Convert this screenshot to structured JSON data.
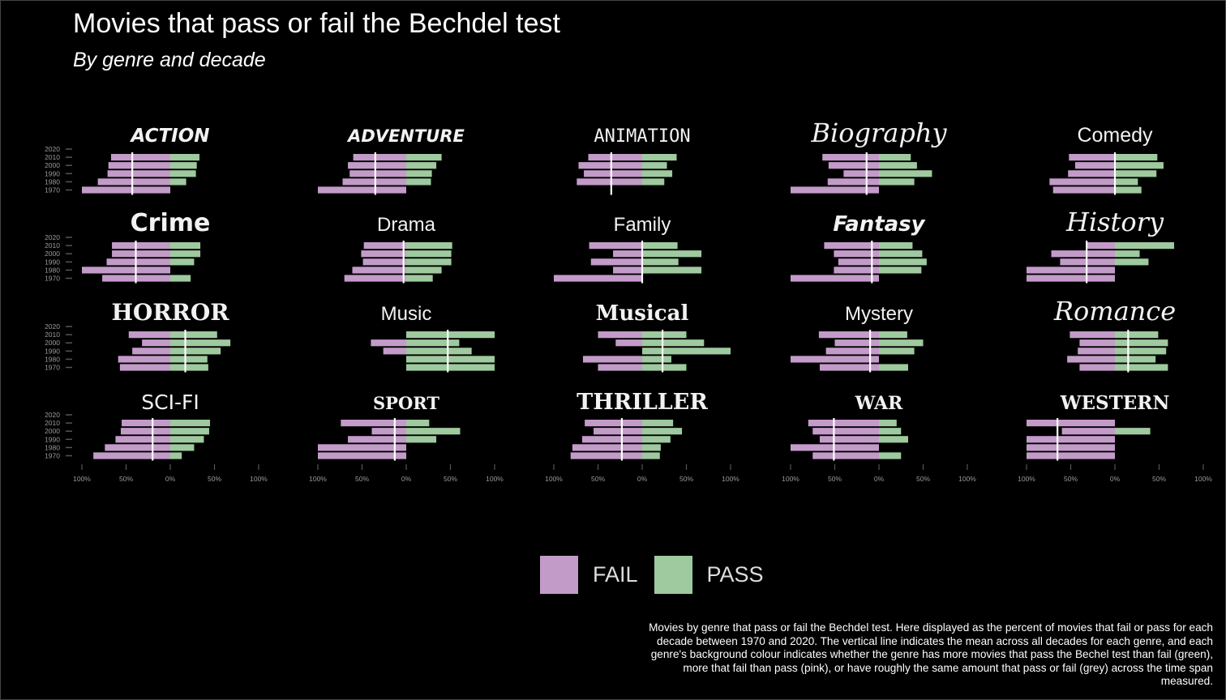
{
  "title": "Movies that pass or fail the Bechdel test",
  "subtitle": "By genre and decade",
  "caption": "Movies by genre that pass or fail the Bechdel test. Here displayed as the percent of movies that fail or pass for each decade between 1970 and 2020. The vertical line indicates the mean across all decades for each genre, and each genre's background colour indicates whether the genre has more movies that pass the Bechel test than fail (green), more that fail than pass (pink), or have roughly the same amount that pass or fail (grey) across the time span measured.",
  "colors": {
    "fail": "#c39bc9",
    "pass": "#9fc99e",
    "mean_line": "#ffffff",
    "axis_text": "#9a9a9a",
    "background": "#000000"
  },
  "legend": [
    {
      "label": "FAIL",
      "color": "#c39bc9"
    },
    {
      "label": "PASS",
      "color": "#9fc99e"
    }
  ],
  "chart_data": {
    "type": "bar",
    "orientation": "horizontal-diverging",
    "layout": "small-multiples-4x5",
    "x_tick_labels": [
      "100%",
      "50%",
      "0%",
      "50%",
      "100%"
    ],
    "x_ticks": [
      -100,
      -50,
      0,
      50,
      100
    ],
    "xlim": [
      -100,
      100
    ],
    "y_tick_labels": [
      "2020",
      "2010",
      "2000",
      "1990",
      "1980",
      "1970"
    ],
    "decades": [
      2020,
      2010,
      2000,
      1990,
      1980,
      1970
    ],
    "series_names": [
      "FAIL",
      "PASS"
    ],
    "units": "percent",
    "panels": [
      {
        "genre": "ACTION",
        "fail": [
          null,
          67,
          70,
          71,
          82,
          100
        ],
        "pass": [
          null,
          33,
          30,
          29,
          18,
          0
        ],
        "mean_fail": 43
      },
      {
        "genre": "ADVENTURE",
        "fail": [
          null,
          60,
          66,
          64,
          72,
          100
        ],
        "pass": [
          null,
          40,
          34,
          29,
          28,
          0
        ],
        "mean_fail": 35
      },
      {
        "genre": "ANIMATION",
        "fail": [
          null,
          61,
          72,
          66,
          74,
          null
        ],
        "pass": [
          null,
          39,
          28,
          34,
          25,
          null
        ],
        "mean_fail": 35
      },
      {
        "genre": "Biography",
        "fail": [
          null,
          64,
          57,
          40,
          58,
          100
        ],
        "pass": [
          null,
          36,
          43,
          60,
          40,
          0
        ],
        "mean_fail": 14
      },
      {
        "genre": "Comedy",
        "fail": [
          null,
          52,
          45,
          53,
          74,
          70
        ],
        "pass": [
          null,
          48,
          55,
          47,
          26,
          30
        ],
        "mean_fail": 0
      },
      {
        "genre": "Crime",
        "fail": [
          null,
          66,
          66,
          72,
          100,
          77
        ],
        "pass": [
          null,
          34,
          34,
          27,
          0,
          23
        ],
        "mean_fail": 39
      },
      {
        "genre": "Drama",
        "fail": [
          null,
          48,
          51,
          49,
          61,
          70
        ],
        "pass": [
          null,
          52,
          51,
          51,
          40,
          30
        ],
        "mean_fail": 3
      },
      {
        "genre": "Family",
        "fail": [
          null,
          60,
          33,
          58,
          33,
          100
        ],
        "pass": [
          null,
          40,
          67,
          41,
          67,
          0
        ],
        "mean_fail": 0
      },
      {
        "genre": "Fantasy",
        "fail": [
          null,
          62,
          51,
          46,
          51,
          100
        ],
        "pass": [
          null,
          38,
          49,
          54,
          48,
          0
        ],
        "mean_fail": 8
      },
      {
        "genre": "History",
        "fail": [
          null,
          33,
          72,
          62,
          100,
          100
        ],
        "pass": [
          null,
          67,
          28,
          38,
          0,
          0
        ],
        "mean_fail": 32
      },
      {
        "genre": "HORROR",
        "fail": [
          null,
          47,
          32,
          43,
          59,
          57
        ],
        "pass": [
          null,
          53,
          68,
          57,
          42,
          43
        ],
        "mean_fail": -17
      },
      {
        "genre": "Music",
        "fail": [
          null,
          0,
          40,
          26,
          0,
          0
        ],
        "pass": [
          null,
          100,
          60,
          74,
          100,
          100
        ],
        "mean_fail": -47
      },
      {
        "genre": "Musical",
        "fail": [
          null,
          50,
          30,
          0,
          67,
          50
        ],
        "pass": [
          null,
          50,
          70,
          100,
          33,
          50
        ],
        "mean_fail": -23
      },
      {
        "genre": "Mystery",
        "fail": [
          null,
          68,
          50,
          60,
          100,
          67
        ],
        "pass": [
          null,
          32,
          50,
          40,
          0,
          33
        ],
        "mean_fail": 10
      },
      {
        "genre": "Romance",
        "fail": [
          null,
          51,
          40,
          42,
          54,
          40
        ],
        "pass": [
          null,
          49,
          60,
          58,
          46,
          60
        ],
        "mean_fail": -15
      },
      {
        "genre": "SCI-FI",
        "fail": [
          null,
          55,
          56,
          62,
          74,
          87
        ],
        "pass": [
          null,
          45,
          44,
          38,
          27,
          13
        ],
        "mean_fail": 20
      },
      {
        "genre": "SPORT",
        "fail": [
          null,
          74,
          39,
          66,
          100,
          100
        ],
        "pass": [
          null,
          26,
          61,
          34,
          0,
          0
        ],
        "mean_fail": 13
      },
      {
        "genre": "THRILLER",
        "fail": [
          null,
          65,
          55,
          68,
          79,
          81
        ],
        "pass": [
          null,
          35,
          45,
          32,
          21,
          20
        ],
        "mean_fail": 23
      },
      {
        "genre": "WAR",
        "fail": [
          null,
          80,
          75,
          67,
          100,
          75
        ],
        "pass": [
          null,
          20,
          25,
          33,
          0,
          25
        ],
        "mean_fail": 51
      },
      {
        "genre": "WESTERN",
        "fail": [
          null,
          100,
          60,
          100,
          100,
          100
        ],
        "pass": [
          null,
          0,
          40,
          0,
          0,
          0
        ],
        "mean_fail": 65
      }
    ]
  }
}
